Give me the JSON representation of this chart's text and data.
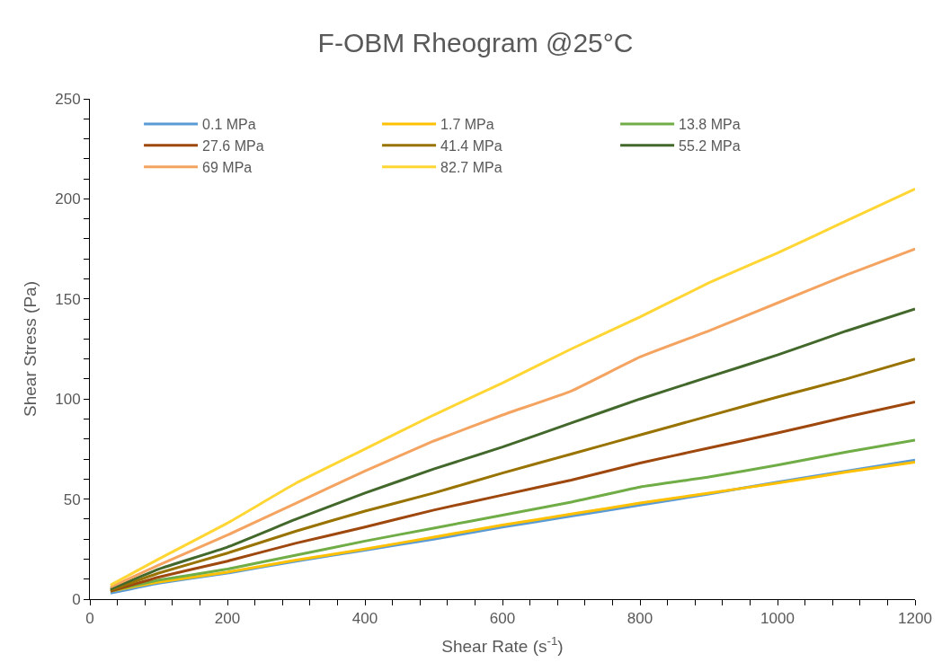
{
  "chart_data": {
    "type": "line",
    "title": "F-OBM Rheogram @25°C",
    "xlabel": "Shear Rate (s$^{-1}$)",
    "ylabel": "Shear Stress (Pa)",
    "x": [
      30,
      100,
      200,
      300,
      400,
      500,
      600,
      700,
      800,
      900,
      1000,
      1100,
      1200
    ],
    "series": [
      {
        "name": "0.1 MPa",
        "color": "#5b9bd5",
        "values": [
          3,
          8,
          13,
          19,
          24.5,
          30,
          36,
          41.5,
          47,
          52.5,
          58.5,
          64,
          69.5
        ]
      },
      {
        "name": "1.7 MPa",
        "color": "#ffc000",
        "values": [
          4,
          8.5,
          13.5,
          19.5,
          25,
          31,
          37,
          42.5,
          48,
          53,
          58,
          63.5,
          68.5
        ]
      },
      {
        "name": "13.8 MPa",
        "color": "#70ad47",
        "values": [
          4,
          9.5,
          15,
          22,
          29,
          35.5,
          42,
          48.5,
          56,
          61,
          67,
          73.5,
          79.5
        ]
      },
      {
        "name": "27.6 MPa",
        "color": "#9e480e",
        "values": [
          4,
          11,
          19,
          28,
          36,
          44.5,
          52,
          59.5,
          68,
          75.5,
          83,
          91,
          98.5
        ]
      },
      {
        "name": "41.4 MPa",
        "color": "#997300",
        "values": [
          4.5,
          13,
          23,
          34,
          44,
          53,
          63,
          72.5,
          82,
          91.5,
          101,
          110,
          120
        ]
      },
      {
        "name": "55.2 MPa",
        "color": "#43682b",
        "values": [
          5,
          15,
          26,
          40,
          53,
          65,
          76,
          88,
          100,
          111,
          122,
          134,
          145
        ]
      },
      {
        "name": "69 MPa",
        "color": "#f4a460",
        "values": [
          6,
          17,
          32,
          48,
          64,
          79,
          92,
          104,
          121,
          134,
          148,
          162,
          175
        ]
      },
      {
        "name": "82.7 MPa",
        "color": "#ffd633",
        "values": [
          7,
          20,
          38,
          58,
          75,
          92,
          108,
          125,
          141,
          158,
          173,
          189,
          205
        ]
      }
    ],
    "xlim": [
      0,
      1200
    ],
    "ylim": [
      0,
      250
    ],
    "xticks": [
      0,
      {
        "value": 40,
        "label": null
      },
      {
        "value": 80,
        "label": null
      },
      {
        "value": 120,
        "label": null
      },
      {
        "value": 160,
        "label": null
      },
      200,
      {
        "value": 240,
        "label": null
      },
      {
        "value": 280,
        "label": null
      },
      {
        "value": 320,
        "label": null
      },
      {
        "value": 360,
        "label": null
      },
      400,
      {
        "value": 440,
        "label": null
      },
      {
        "value": 480,
        "label": null
      },
      {
        "value": 520,
        "label": null
      },
      {
        "value": 560,
        "label": null
      },
      600,
      {
        "value": 640,
        "label": null
      },
      {
        "value": 680,
        "label": null
      },
      {
        "value": 720,
        "label": null
      },
      {
        "value": 760,
        "label": null
      },
      800,
      {
        "value": 840,
        "label": null
      },
      {
        "value": 880,
        "label": null
      },
      {
        "value": 920,
        "label": null
      },
      {
        "value": 960,
        "label": null
      },
      1000,
      {
        "value": 1040,
        "label": null
      },
      {
        "value": 1080,
        "label": null
      },
      {
        "value": 1120,
        "label": null
      },
      {
        "value": 1160,
        "label": null
      },
      1200
    ],
    "yticks": [
      0,
      {
        "value": 10,
        "label": null
      },
      {
        "value": 20,
        "label": null
      },
      {
        "value": 30,
        "label": null
      },
      {
        "value": 40,
        "label": null
      },
      50,
      {
        "value": 60,
        "label": null
      },
      {
        "value": 70,
        "label": null
      },
      {
        "value": 80,
        "label": null
      },
      {
        "value": 90,
        "label": null
      },
      100,
      {
        "value": 110,
        "label": null
      },
      {
        "value": 120,
        "label": null
      },
      {
        "value": 130,
        "label": null
      },
      {
        "value": 140,
        "label": null
      },
      150,
      {
        "value": 160,
        "label": null
      },
      {
        "value": 170,
        "label": null
      },
      {
        "value": 180,
        "label": null
      },
      {
        "value": 190,
        "label": null
      },
      200,
      {
        "value": 210,
        "label": null
      },
      {
        "value": 220,
        "label": null
      },
      {
        "value": 230,
        "label": null
      },
      {
        "value": 240,
        "label": null
      },
      250
    ],
    "legend": "top left",
    "marker": "none",
    "line_style": "solid"
  }
}
